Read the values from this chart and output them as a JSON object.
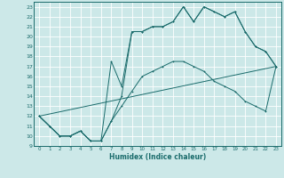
{
  "xlabel": "Humidex (Indice chaleur)",
  "bg_color": "#cce8e8",
  "line_color": "#1a6b6b",
  "grid_color": "#ffffff",
  "xlim": [
    -0.5,
    23.5
  ],
  "ylim": [
    9,
    23.5
  ],
  "xticks": [
    0,
    1,
    2,
    3,
    4,
    5,
    6,
    7,
    8,
    9,
    10,
    11,
    12,
    13,
    14,
    15,
    16,
    17,
    18,
    19,
    20,
    21,
    22,
    23
  ],
  "yticks": [
    9,
    10,
    11,
    12,
    13,
    14,
    15,
    16,
    17,
    18,
    19,
    20,
    21,
    22,
    23
  ],
  "line1_x": [
    0,
    1,
    2,
    3,
    4,
    5,
    6,
    7,
    8,
    9,
    10,
    11,
    12,
    13,
    14,
    15,
    16,
    17,
    18,
    19,
    20,
    21,
    22,
    23
  ],
  "line1_y": [
    12,
    11,
    10,
    10,
    10.5,
    9.5,
    9.5,
    11.5,
    14,
    20.5,
    20.5,
    21,
    21,
    21.5,
    23,
    21.5,
    23,
    22.5,
    22,
    22.5,
    20.5,
    19,
    18.5,
    17
  ],
  "line2_x": [
    0,
    1,
    2,
    3,
    4,
    5,
    6,
    7,
    8,
    9,
    10,
    11,
    12,
    13,
    14,
    15,
    16,
    17,
    18,
    19,
    20,
    21,
    22,
    23
  ],
  "line2_y": [
    12,
    11,
    10,
    10,
    10.5,
    9.5,
    9.5,
    17.5,
    15,
    20.5,
    20.5,
    21,
    21,
    21.5,
    23,
    21.5,
    23,
    22.5,
    22,
    22.5,
    20.5,
    19,
    18.5,
    17
  ],
  "line3_x": [
    0,
    23
  ],
  "line3_y": [
    12,
    17
  ],
  "line4_x": [
    0,
    1,
    2,
    3,
    4,
    5,
    6,
    7,
    8,
    9,
    10,
    11,
    12,
    13,
    14,
    15,
    16,
    17,
    18,
    19,
    20,
    21,
    22,
    23
  ],
  "line4_y": [
    12,
    11,
    10,
    10,
    10.5,
    9.5,
    9.5,
    11.5,
    13,
    14.5,
    16,
    16.5,
    17,
    17.5,
    17.5,
    17,
    16.5,
    15.5,
    15,
    14.5,
    13.5,
    13,
    12.5,
    17
  ]
}
